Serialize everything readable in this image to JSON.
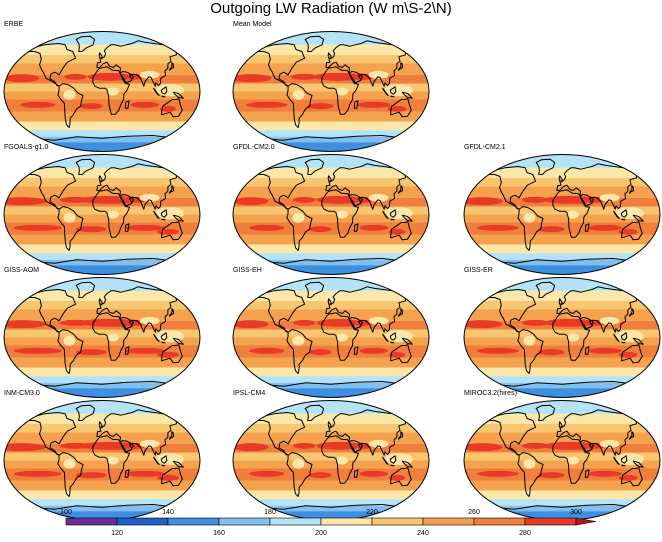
{
  "title": "Outgoing LW Radiation (W m\\S-2\\N)",
  "panels": [
    {
      "name": "ERBE"
    },
    {
      "name": "Mean Model"
    },
    {
      "name": "FGOALS-g1.0"
    },
    {
      "name": "GFDL-CM2.0"
    },
    {
      "name": "GFDL-CM2.1"
    },
    {
      "name": "GISS-AOM"
    },
    {
      "name": "GISS-EH"
    },
    {
      "name": "GISS-ER"
    },
    {
      "name": "INM-CM3.0"
    },
    {
      "name": "IPSL-CM4"
    },
    {
      "name": "MIROC3.2(hires)"
    }
  ],
  "colorbar": {
    "levels": [
      100,
      120,
      140,
      160,
      180,
      200,
      220,
      240,
      260,
      280,
      300
    ],
    "top_labels": [
      "100",
      "140",
      "180",
      "220",
      "260",
      "300"
    ],
    "bottom_labels": [
      "120",
      "160",
      "200",
      "240",
      "280"
    ],
    "colors": [
      "#6a2d9e",
      "#1f5fc8",
      "#3f8fe0",
      "#7fc0ee",
      "#b4e2f6",
      "#fbe7a8",
      "#f8c66e",
      "#f5a24e",
      "#f07f3c",
      "#e83a26",
      "#b8161a"
    ]
  }
}
